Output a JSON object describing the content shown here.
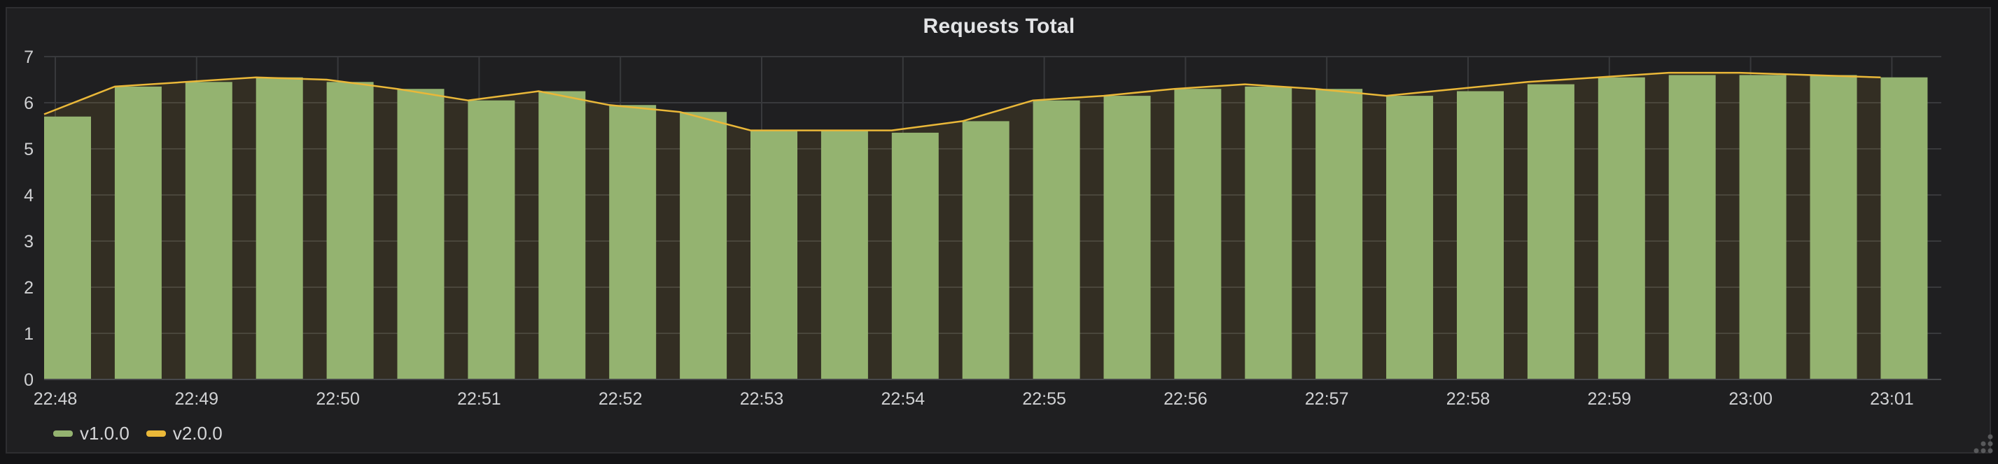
{
  "panel": {
    "title": "Requests Total",
    "legend_items": [
      {
        "label": "v1.0.0",
        "color": "#94b370"
      },
      {
        "label": "v2.0.0",
        "color": "#eab839"
      }
    ]
  },
  "chart_data": {
    "type": "bar+line",
    "title": "Requests Total",
    "x_tick_labels": [
      "22:48",
      "22:49",
      "22:50",
      "22:51",
      "22:52",
      "22:53",
      "22:54",
      "22:55",
      "22:56",
      "22:57",
      "22:58",
      "22:59",
      "23:00",
      "23:01"
    ],
    "x_times": [
      "22:48:00",
      "22:48:30",
      "22:49:00",
      "22:49:30",
      "22:50:00",
      "22:50:30",
      "22:51:00",
      "22:51:30",
      "22:52:00",
      "22:52:30",
      "22:53:00",
      "22:53:30",
      "22:54:00",
      "22:54:30",
      "22:55:00",
      "22:55:30",
      "22:56:00",
      "22:56:30",
      "22:57:00",
      "22:57:30",
      "22:58:00",
      "22:58:30",
      "22:59:00",
      "22:59:30",
      "23:00:00",
      "23:00:30",
      "23:01:00"
    ],
    "interval_seconds": 30,
    "ylim": [
      0,
      7
    ],
    "y_ticks": [
      0,
      1,
      2,
      3,
      4,
      5,
      6,
      7
    ],
    "grid": true,
    "legend_position": "bottom-left",
    "series": [
      {
        "name": "v1.0.0",
        "type": "bars",
        "color": "#94b370",
        "values": [
          5.7,
          6.35,
          6.45,
          6.55,
          6.45,
          6.3,
          6.05,
          6.25,
          5.95,
          5.8,
          5.4,
          5.4,
          5.35,
          5.6,
          6.05,
          6.15,
          6.3,
          6.35,
          6.3,
          6.15,
          6.25,
          6.4,
          6.55,
          6.6,
          6.6,
          6.6,
          6.55
        ]
      },
      {
        "name": "v2.0.0",
        "type": "line",
        "color": "#eab839",
        "fill_opacity": 0.1,
        "values": [
          5.75,
          6.35,
          6.45,
          6.55,
          6.5,
          6.3,
          6.05,
          6.25,
          5.95,
          5.8,
          5.4,
          5.4,
          5.4,
          5.6,
          6.05,
          6.15,
          6.3,
          6.4,
          6.3,
          6.15,
          6.3,
          6.45,
          6.55,
          6.65,
          6.65,
          6.6,
          6.55
        ]
      }
    ]
  },
  "colors": {
    "page_bg": "#141416",
    "panel_bg": "#1f1f21",
    "panel_border": "#2e2e31",
    "grid": "#38393c",
    "axis_line": "#48494c",
    "tick_text": "#d0d1d3",
    "title_text": "#e3e4e6",
    "legend_text": "#d5d6d8",
    "bar": "#94b370",
    "line": "#eab839",
    "resize_dots": "#58595b"
  }
}
